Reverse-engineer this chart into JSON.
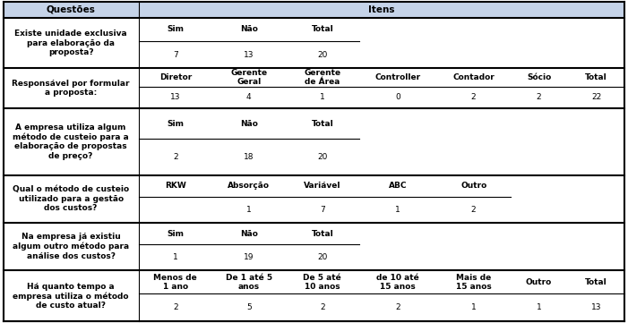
{
  "header_bg": "#c5d3e8",
  "body_bg": "#ffffff",
  "figsize": [
    7.01,
    3.61
  ],
  "dpi": 100,
  "question_col_label": "Questões",
  "items_col_label": "Itens",
  "rows": [
    {
      "question": "Existe unidade exclusiva\npara elaboração da\nproposta?",
      "subheader": [
        "Sim",
        "Não",
        "Total",
        "",
        "",
        "",
        ""
      ],
      "subvalues": [
        "7",
        "13",
        "20",
        "",
        "",
        "",
        ""
      ],
      "ncols_used": 3,
      "q_lines": 3
    },
    {
      "question": "Responsável por formular\na proposta:",
      "subheader": [
        "Diretor",
        "Gerente\nGeral",
        "Gerente\nde Área",
        "Controller",
        "Contador",
        "Sócio",
        "Total"
      ],
      "subvalues": [
        "13",
        "4",
        "1",
        "0",
        "2",
        "2",
        "22"
      ],
      "ncols_used": 7,
      "q_lines": 2
    },
    {
      "question": "A empresa utiliza algum\nmétodo de custeio para a\nelaboração de propostas\nde preço?",
      "subheader": [
        "Sim",
        "Não",
        "Total",
        "",
        "",
        "",
        ""
      ],
      "subvalues": [
        "2",
        "18",
        "20",
        "",
        "",
        "",
        ""
      ],
      "ncols_used": 3,
      "q_lines": 4
    },
    {
      "question": "Qual o método de custeio\nutilizado para a gestão\ndos custos?",
      "subheader": [
        "RKW",
        "Absorção",
        "Variável",
        "ABC",
        "Outro",
        "",
        ""
      ],
      "subvalues": [
        "",
        "1",
        "7",
        "1",
        "2",
        "",
        ""
      ],
      "ncols_used": 5,
      "q_lines": 3
    },
    {
      "question": "Na empresa já existiu\nalgum outro método para\nanálise dos custos?",
      "subheader": [
        "Sim",
        "Não",
        "Total",
        "",
        "",
        "",
        ""
      ],
      "subvalues": [
        "1",
        "19",
        "20",
        "",
        "",
        "",
        ""
      ],
      "ncols_used": 3,
      "q_lines": 3
    },
    {
      "question": "Há quanto tempo a\nempresa utiliza o método\nde custo atual?",
      "subheader": [
        "Menos de\n1 ano",
        "De 1 até 5\nanos",
        "De 5 até\n10 anos",
        "de 10 até\n15 anos",
        "Mais de\n15 anos",
        "Outro",
        "Total"
      ],
      "subvalues": [
        "2",
        "5",
        "2",
        "2",
        "1",
        "1",
        "13"
      ],
      "ncols_used": 7,
      "q_lines": 3
    }
  ]
}
